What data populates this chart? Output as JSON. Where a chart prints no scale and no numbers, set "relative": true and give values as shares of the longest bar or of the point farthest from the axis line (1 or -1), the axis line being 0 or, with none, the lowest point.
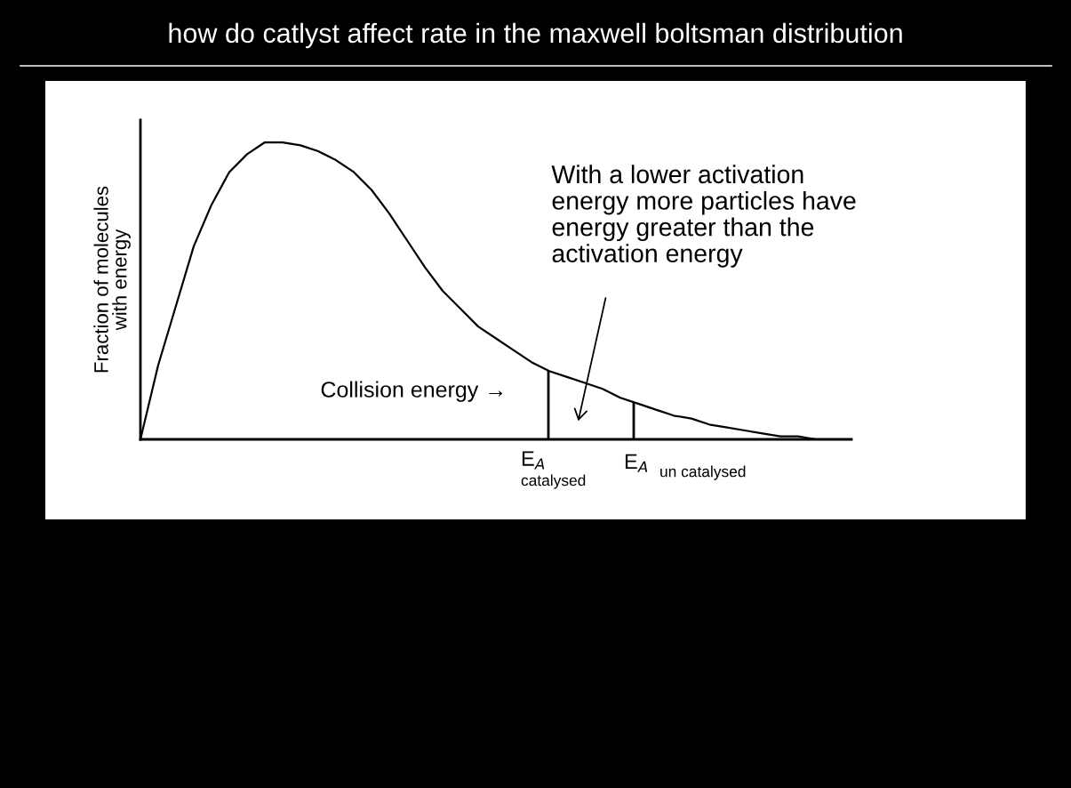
{
  "chart_data": {
    "type": "line",
    "title": "how do catlyst affect rate in the maxwell boltsman distribution",
    "ylabel": "Fraction of molecules\nwith energy",
    "relative": true,
    "color": "#000000",
    "categories": [
      null,
      null,
      null,
      null,
      null,
      null,
      null,
      null,
      null,
      null,
      null,
      null,
      null,
      null,
      null,
      null,
      null,
      null,
      null,
      null,
      null,
      null,
      null,
      null,
      null,
      null,
      null,
      null,
      null,
      null,
      null,
      null,
      null,
      null,
      null,
      null,
      null,
      null,
      null,
      null
    ],
    "values": [
      0,
      0.25,
      0.45,
      0.65,
      0.79,
      0.9,
      0.96,
      1.0,
      1.0,
      0.99,
      0.97,
      0.94,
      0.9,
      0.84,
      0.76,
      0.67,
      0.58,
      0.5,
      0.44,
      0.38,
      0.34,
      0.3,
      0.26,
      0.23,
      0.21,
      0.19,
      0.17,
      0.14,
      0.12,
      0.1,
      0.08,
      0.07,
      0.05,
      0.04,
      0.03,
      0.02,
      0.01,
      0.01,
      0.0,
      0
    ],
    "annotations": [
      "Collision energy →",
      "With a lower activation\nenergy more particles have\nenergy greater than the\nactivation energy",
      "E$_{A}$",
      "catalysed",
      "E$_{A}$",
      "un catalysed"
    ],
    "legend": false,
    "marker": "none",
    "line_style": "solid"
  }
}
